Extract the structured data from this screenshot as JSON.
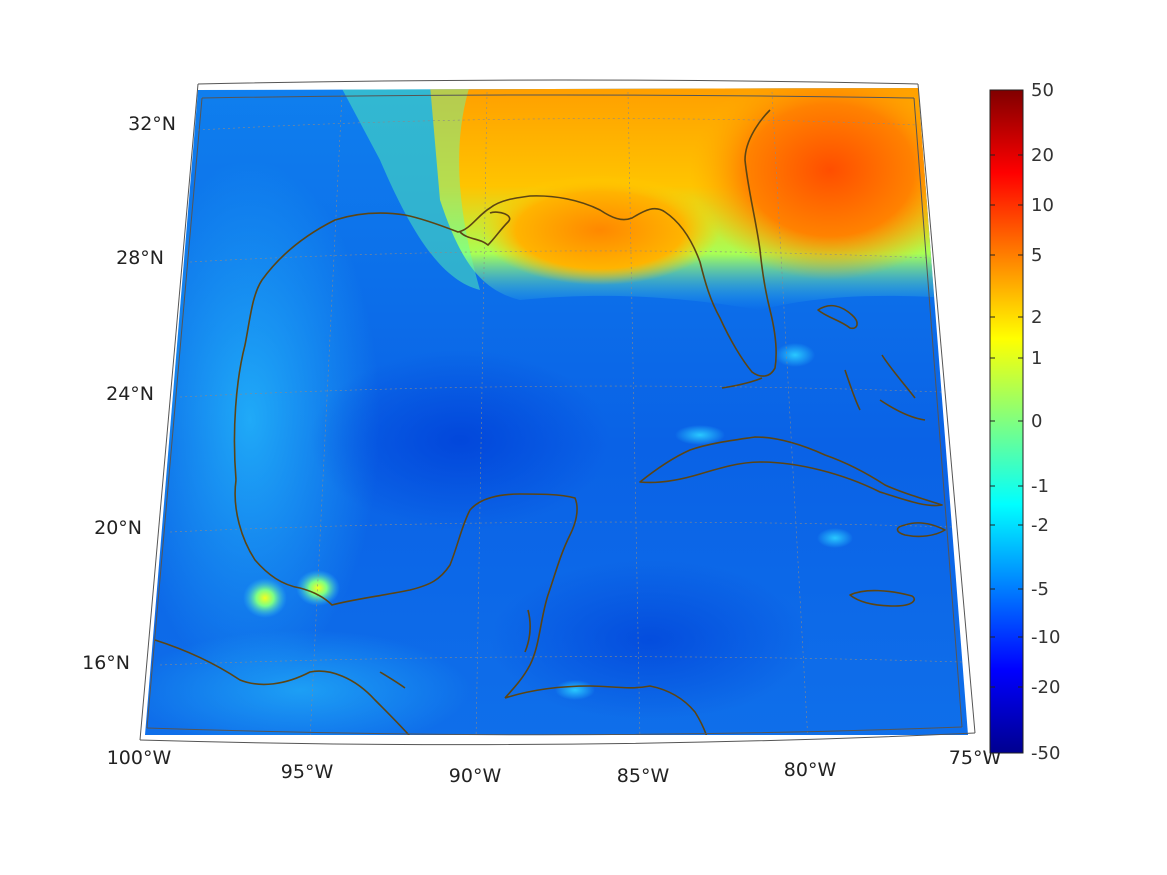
{
  "map": {
    "lon_labels": [
      "100°W",
      "95°W",
      "90°W",
      "85°W",
      "80°W",
      "75°W"
    ],
    "lat_labels": [
      "32°N",
      "28°N",
      "24°N",
      "20°N",
      "16°N"
    ],
    "region": "Gulf of Mexico / Caribbean",
    "grid": true,
    "coastline_color": "#5c4513"
  },
  "colorbar": {
    "colormap": "jet",
    "ticks": [
      "50",
      "20",
      "10",
      "5",
      "2",
      "1",
      "0",
      "-1",
      "-2",
      "-5",
      "-10",
      "-20",
      "-50"
    ],
    "range": [
      -50,
      50
    ],
    "placement": "right"
  },
  "chart_data": {
    "type": "heatmap",
    "title": "",
    "xlabel": "",
    "ylabel": "",
    "xlim": [
      -100,
      -75
    ],
    "ylim": [
      14,
      33
    ],
    "x_ticks": [
      -100,
      -95,
      -90,
      -85,
      -80,
      -75
    ],
    "y_ticks": [
      32,
      28,
      24,
      20,
      16
    ],
    "colorbar_ticks": [
      50,
      20,
      10,
      5,
      2,
      1,
      0,
      -1,
      -2,
      -5,
      -10,
      -20,
      -50
    ],
    "colorbar_scale": "symlog",
    "features": [
      {
        "region": "Florida and southeastern US",
        "approx_value": 10
      },
      {
        "region": "Northeast Gulf coast (Florida panhandle)",
        "approx_value": 5
      },
      {
        "region": "Mississippi / Louisiana coast",
        "approx_value": 1
      },
      {
        "region": "Central Gulf of Mexico",
        "approx_value": -10
      },
      {
        "region": "Western Caribbean",
        "approx_value": -10
      },
      {
        "region": "Bay of Campeche hot spots",
        "approx_value": 1
      },
      {
        "region": "Open Atlantic east of Bahamas",
        "approx_value": -5
      }
    ]
  }
}
